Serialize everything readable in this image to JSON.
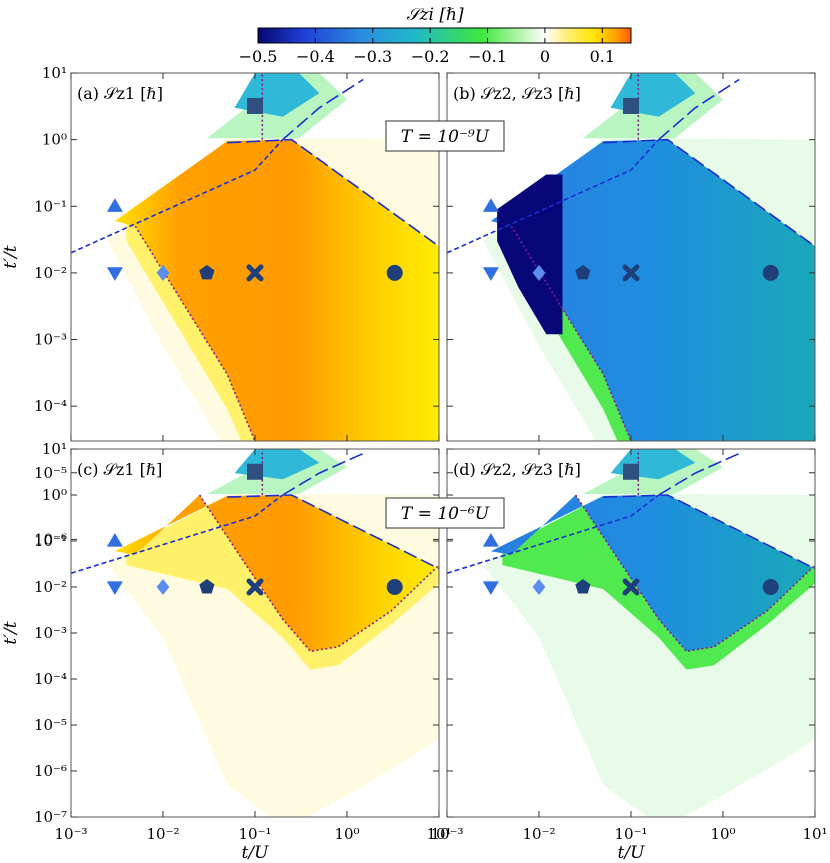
{
  "chart_data": {
    "type": "heatmap",
    "colorbar": {
      "label": "𝒮zi [ℏ]",
      "range": [
        -0.5,
        0.15
      ],
      "ticks": [
        -0.5,
        -0.4,
        -0.3,
        -0.2,
        -0.1,
        0,
        0.1
      ],
      "tick_labels": [
        "−0.5",
        "−0.4",
        "−0.3",
        "−0.2",
        "−0.1",
        "0",
        "0.1"
      ],
      "colormap": [
        "#06066e",
        "#1f3ed6",
        "#2a8ee0",
        "#20b8c8",
        "#3fe83f",
        "#c8f7c0",
        "#ffffff",
        "#fff08a",
        "#ffe600",
        "#ffa000",
        "#ff5a0a"
      ]
    },
    "x": {
      "label": "t/U",
      "scale": "log",
      "range": [
        0.001,
        10
      ],
      "ticks": [
        0.001,
        0.01,
        0.1,
        1,
        10
      ],
      "tick_labels": [
        "10⁻³",
        "10⁻²",
        "10⁻¹",
        "10⁰",
        "10¹"
      ]
    },
    "y": {
      "label": "t′/t",
      "scale": "log",
      "range_top": [
        3e-05,
        10
      ],
      "range_bottom": [
        1e-07,
        10
      ],
      "ticks_top": [
        10,
        1,
        0.1,
        0.01,
        0.001,
        0.0001,
        1e-05,
        1e-06
      ],
      "tick_labels_top": [
        "10¹",
        "10⁰",
        "10⁻¹",
        "10⁻²",
        "10⁻³",
        "10⁻⁴",
        "10⁻⁵",
        "10⁻⁶"
      ],
      "ticks_bottom": [
        10,
        1,
        0.1,
        0.01,
        0.001,
        0.0001,
        1e-05,
        1e-06,
        1e-07
      ],
      "tick_labels_bottom": [
        "10¹",
        "10⁰",
        "10⁻¹",
        "10⁻²",
        "10⁻³",
        "10⁻⁴",
        "10⁻⁵",
        "10⁻⁶",
        "10⁻⁷"
      ]
    },
    "temperature_labels": [
      "T = 10⁻⁹U",
      "T = 10⁻⁶U"
    ],
    "panels": [
      {
        "label": "(a) 𝒮z1 [ℏ]",
        "row": "top",
        "quantity": "Sz1",
        "temperature_index": 0
      },
      {
        "label": "(b) 𝒮z2, 𝒮z3 [ℏ]",
        "row": "top",
        "quantity": "Sz2",
        "temperature_index": 0
      },
      {
        "label": "(c) 𝒮z1 [ℏ]",
        "row": "bottom",
        "quantity": "Sz1",
        "temperature_index": 1
      },
      {
        "label": "(d) 𝒮z2, 𝒮z3 [ℏ]",
        "row": "bottom",
        "quantity": "Sz2",
        "temperature_index": 1
      }
    ],
    "markers": [
      {
        "shape": "triangle-up",
        "x": 0.003,
        "y": 0.1,
        "color": "#2f6fe0"
      },
      {
        "shape": "triangle-down",
        "x": 0.003,
        "y": 0.01,
        "color": "#2f6fe0"
      },
      {
        "shape": "diamond",
        "x": 0.01,
        "y": 0.01,
        "color": "#5b8ef0"
      },
      {
        "shape": "pentagon",
        "x": 0.03,
        "y": 0.01,
        "color": "#1f3f7a"
      },
      {
        "shape": "x",
        "x": 0.1,
        "y": 0.01,
        "color": "#1f3f7a"
      },
      {
        "shape": "circle",
        "x": 3.3,
        "y": 0.01,
        "color": "#1f3f7a"
      },
      {
        "shape": "square",
        "x": 0.1,
        "y": 3.2,
        "color": "#2f4f80"
      }
    ],
    "boundaries": {
      "blue_short_dashed": [
        [
          0.001,
          0.02
        ],
        [
          0.1,
          0.35
        ],
        [
          0.2,
          1.0
        ]
      ],
      "blue_long_dashed": [
        [
          0.05,
          0.9
        ],
        [
          0.25,
          1.0
        ],
        [
          10,
          0.025
        ]
      ],
      "blue_long_dashed_upper": [
        [
          0.2,
          1.0
        ],
        [
          0.5,
          3
        ],
        [
          1.5,
          8
        ]
      ],
      "purple_dotted_top": [
        [
          0.005,
          0.05
        ],
        [
          0.05,
          0.0003
        ],
        [
          0.2,
          3e-06
        ],
        [
          0.4,
          4e-07
        ],
        [
          0.8,
          6e-07
        ],
        [
          3,
          3e-06
        ],
        [
          10,
          2e-05
        ]
      ],
      "purple_dotted_bottom": [
        [
          0.025,
          1
        ],
        [
          0.08,
          0.03
        ],
        [
          0.2,
          0.002
        ],
        [
          0.4,
          0.0004
        ],
        [
          0.8,
          0.0005
        ],
        [
          3,
          0.003
        ],
        [
          10,
          0.03
        ]
      ],
      "purple_dotted_upper": [
        [
          0.12,
          1
        ],
        [
          0.12,
          10
        ]
      ]
    }
  }
}
